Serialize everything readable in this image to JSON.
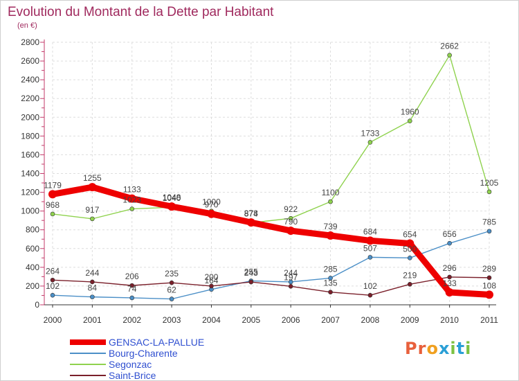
{
  "title": "Evolution du Montant de la Dette par Habitant",
  "subtitle": "(en €)",
  "brand": {
    "text": "Proxiti",
    "letter_colors": [
      "#e8603c",
      "#e8603c",
      "#f0a020",
      "#2a9fd6",
      "#7cc242",
      "#2a9fd6",
      "#7cc242"
    ]
  },
  "chart_data": {
    "type": "line",
    "x": [
      "2000",
      "2001",
      "2002",
      "2003",
      "2004",
      "2005",
      "2006",
      "2007",
      "2008",
      "2009",
      "2010",
      "2011"
    ],
    "ylim": [
      0,
      2800
    ],
    "yticks": [
      "0",
      "200",
      "400",
      "600",
      "800",
      "1000",
      "1200",
      "1400",
      "1600",
      "1800",
      "2000",
      "2200",
      "2400",
      "2600",
      "2800"
    ],
    "grid": true,
    "legend": "bottom-left",
    "series": [
      {
        "name": "GENSAC-LA-PALLUE",
        "color": "#ee0000",
        "values": [
          1179,
          1255,
          1133,
          1048,
          970,
          878,
          790,
          739,
          684,
          654,
          133,
          108
        ]
      },
      {
        "name": "Bourg-Charente",
        "color": "#4b8fc7",
        "values": [
          102,
          84,
          74,
          62,
          164,
          255,
          244,
          285,
          507,
          500,
          656,
          785
        ]
      },
      {
        "name": "Segonzac",
        "color": "#8fd24e",
        "values": [
          968,
          917,
          1023,
          1040,
          1000,
          874,
          922,
          1100,
          1733,
          1960,
          2662,
          1205
        ]
      },
      {
        "name": "Saint-Brice",
        "color": "#7a1f2a",
        "values": [
          264,
          244,
          206,
          235,
          200,
          243,
          197,
          135,
          102,
          219,
          296,
          289
        ]
      }
    ]
  }
}
